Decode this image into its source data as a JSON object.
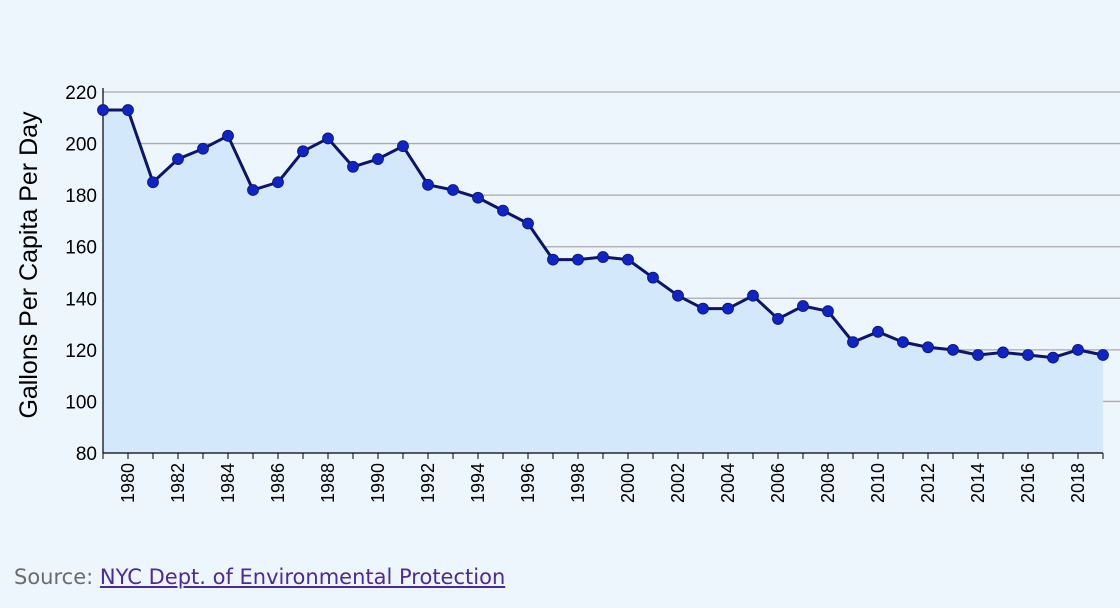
{
  "colors": {
    "background": "#eef6fd",
    "area_fill": "#d4e8fb",
    "line": "#0c1569",
    "point": "#0f24c7",
    "grid": "#a9a9a9",
    "source_text": "#6b6b6b",
    "source_link": "#4b2a9e"
  },
  "source": {
    "label": "Source:",
    "link_text": "NYC Dept. of Environmental Protection"
  },
  "chart_data": {
    "type": "area",
    "title": "",
    "xlabel": "",
    "ylabel": "Gallons Per Capita Per Day",
    "ylim": [
      80,
      220
    ],
    "xlim": [
      1979,
      2019
    ],
    "grid": "horizontal",
    "legend": "none",
    "yticks": [
      "80",
      "100",
      "120",
      "140",
      "160",
      "180",
      "200",
      "220"
    ],
    "xticks": [
      "1980",
      "1982",
      "1984",
      "1986",
      "1988",
      "1990",
      "1992",
      "1994",
      "1996",
      "1998",
      "2000",
      "2002",
      "2004",
      "2006",
      "2008",
      "2010",
      "2012",
      "2014",
      "2016",
      "2018"
    ],
    "x": [
      1979,
      1980,
      1981,
      1982,
      1983,
      1984,
      1985,
      1986,
      1987,
      1988,
      1989,
      1990,
      1991,
      1992,
      1993,
      1994,
      1995,
      1996,
      1997,
      1998,
      1999,
      2000,
      2001,
      2002,
      2003,
      2004,
      2005,
      2006,
      2007,
      2008,
      2009,
      2010,
      2011,
      2012,
      2013,
      2014,
      2015,
      2016,
      2017,
      2018,
      2019
    ],
    "values": [
      213,
      213,
      185,
      194,
      198,
      203,
      182,
      185,
      197,
      202,
      191,
      194,
      199,
      184,
      182,
      179,
      174,
      169,
      155,
      155,
      156,
      155,
      148,
      141,
      136,
      136,
      141,
      132,
      137,
      135,
      123,
      127,
      123,
      121,
      120,
      118,
      119,
      118,
      117,
      120,
      118
    ]
  }
}
